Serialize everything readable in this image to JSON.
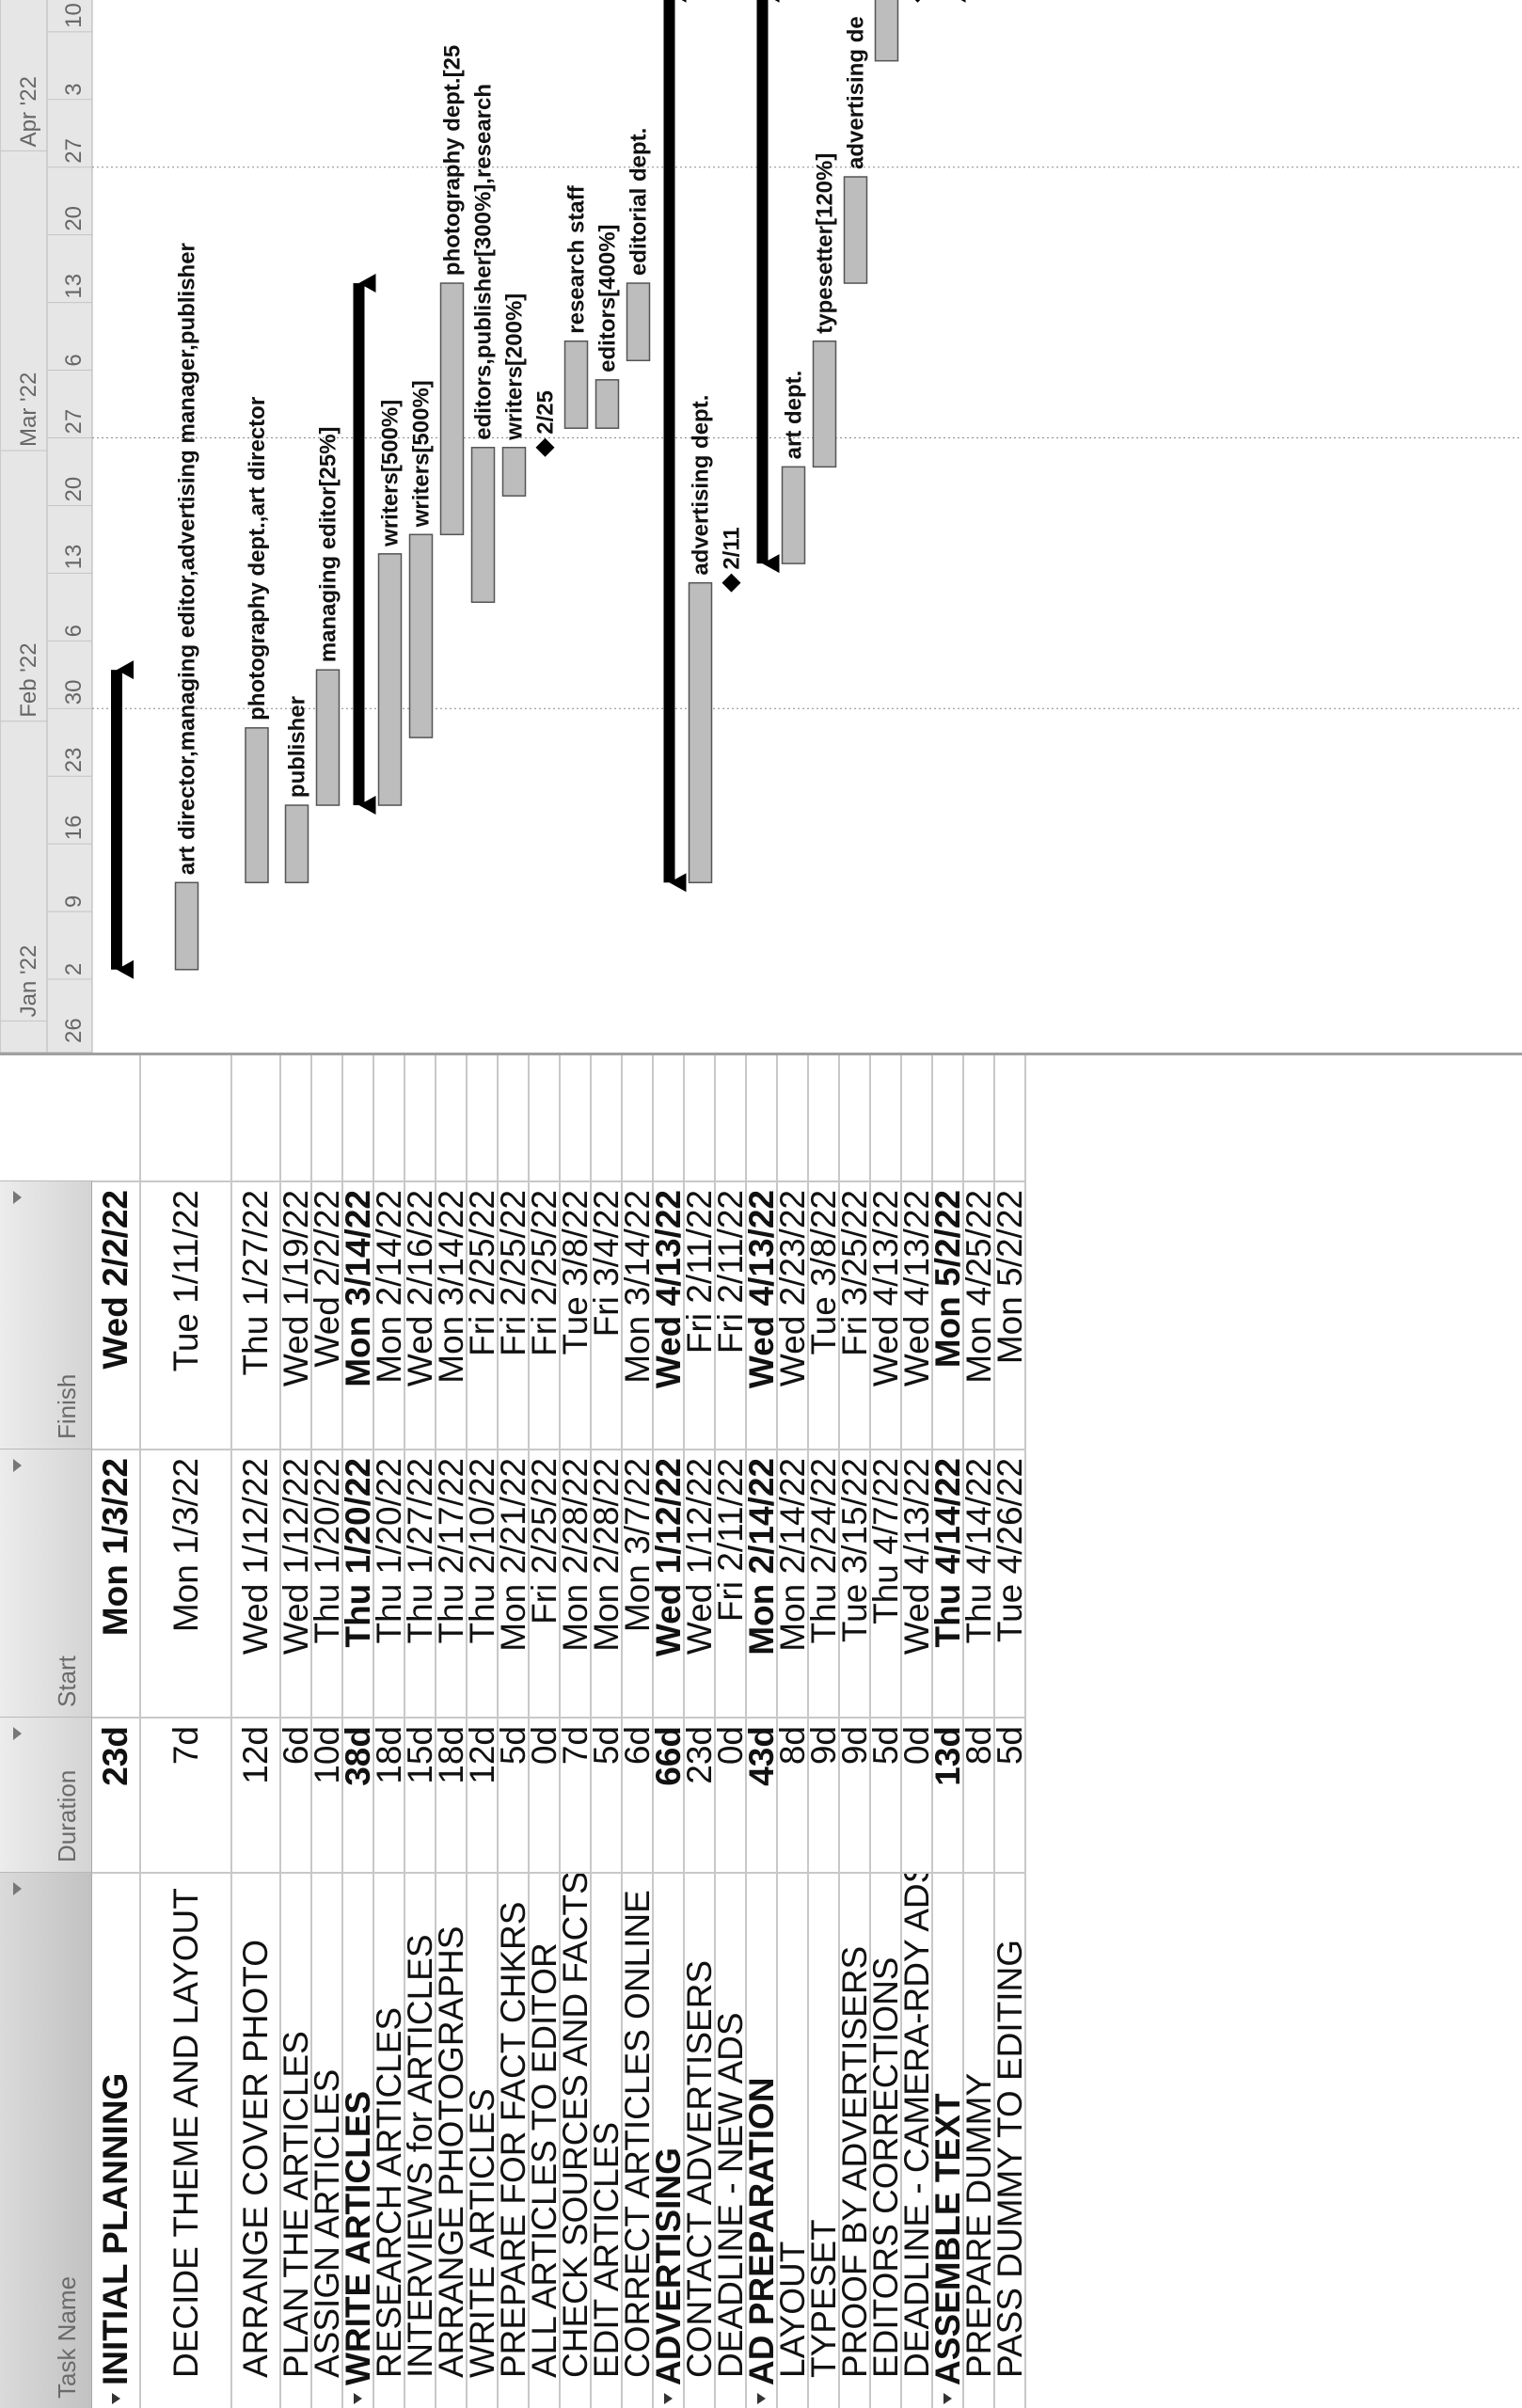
{
  "columns": {
    "task_name": "Task Name",
    "duration": "Duration",
    "start": "Start",
    "finish": "Finish"
  },
  "tasks": [
    {
      "name": "INITIAL PLANNING",
      "duration": "23d",
      "start": "Mon 1/3/22",
      "finish": "Wed 2/2/22",
      "summary": true
    },
    {
      "name": "DECIDE THEME AND LAYOUT",
      "duration": "7d",
      "start": "Mon 1/3/22",
      "finish": "Tue 1/11/22",
      "summary": false
    },
    {
      "name": "ARRANGE COVER PHOTO",
      "duration": "12d",
      "start": "Wed 1/12/22",
      "finish": "Thu 1/27/22",
      "summary": false
    },
    {
      "name": "PLAN THE ARTICLES",
      "duration": "6d",
      "start": "Wed 1/12/22",
      "finish": "Wed 1/19/22",
      "summary": false
    },
    {
      "name": "ASSIGN ARTICLES",
      "duration": "10d",
      "start": "Thu 1/20/22",
      "finish": "Wed 2/2/22",
      "summary": false
    },
    {
      "name": "WRITE ARTICLES",
      "duration": "38d",
      "start": "Thu 1/20/22",
      "finish": "Mon 3/14/22",
      "summary": true
    },
    {
      "name": "RESEARCH ARTICLES",
      "duration": "18d",
      "start": "Thu 1/20/22",
      "finish": "Mon 2/14/22",
      "summary": false
    },
    {
      "name": "INTERVIEWS for ARTICLES",
      "duration": "15d",
      "start": "Thu 1/27/22",
      "finish": "Wed 2/16/22",
      "summary": false
    },
    {
      "name": "ARRANGE PHOTOGRAPHS",
      "duration": "18d",
      "start": "Thu 2/17/22",
      "finish": "Mon 3/14/22",
      "summary": false
    },
    {
      "name": "WRITE ARTICLES",
      "duration": "12d",
      "start": "Thu 2/10/22",
      "finish": "Fri 2/25/22",
      "summary": false
    },
    {
      "name": "PREPARE FOR FACT CHKRS",
      "duration": "5d",
      "start": "Mon 2/21/22",
      "finish": "Fri 2/25/22",
      "summary": false
    },
    {
      "name": "ALL ARTICLES TO EDITOR",
      "duration": "0d",
      "start": "Fri 2/25/22",
      "finish": "Fri 2/25/22",
      "summary": false
    },
    {
      "name": "CHECK SOURCES AND FACTS",
      "duration": "7d",
      "start": "Mon 2/28/22",
      "finish": "Tue 3/8/22",
      "summary": false
    },
    {
      "name": "EDIT ARTICLES",
      "duration": "5d",
      "start": "Mon 2/28/22",
      "finish": "Fri 3/4/22",
      "summary": false
    },
    {
      "name": "CORRECT ARTICLES ONLINE",
      "duration": "6d",
      "start": "Mon 3/7/22",
      "finish": "Mon 3/14/22",
      "summary": false
    },
    {
      "name": "ADVERTISING",
      "duration": "66d",
      "start": "Wed 1/12/22",
      "finish": "Wed 4/13/22",
      "summary": true
    },
    {
      "name": "CONTACT ADVERTISERS",
      "duration": "23d",
      "start": "Wed 1/12/22",
      "finish": "Fri 2/11/22",
      "summary": false
    },
    {
      "name": "DEADLINE - NEW ADS",
      "duration": "0d",
      "start": "Fri 2/11/22",
      "finish": "Fri 2/11/22",
      "summary": false
    },
    {
      "name": "AD PREPARATION",
      "duration": "43d",
      "start": "Mon 2/14/22",
      "finish": "Wed 4/13/22",
      "summary": true
    },
    {
      "name": "LAYOUT",
      "duration": "8d",
      "start": "Mon 2/14/22",
      "finish": "Wed 2/23/22",
      "summary": false
    },
    {
      "name": "TYPESET",
      "duration": "9d",
      "start": "Thu 2/24/22",
      "finish": "Tue 3/8/22",
      "summary": false
    },
    {
      "name": "PROOF BY ADVERTISERS",
      "duration": "9d",
      "start": "Tue 3/15/22",
      "finish": "Fri 3/25/22",
      "summary": false
    },
    {
      "name": "EDITORS CORRECTIONS",
      "duration": "5d",
      "start": "Thu 4/7/22",
      "finish": "Wed 4/13/22",
      "summary": false
    },
    {
      "name": "DEADLINE - CAMERA-RDY ADS",
      "duration": "0d",
      "start": "Wed 4/13/22",
      "finish": "Wed 4/13/22",
      "summary": false
    },
    {
      "name": "ASSEMBLE TEXT",
      "duration": "13d",
      "start": "Thu 4/14/22",
      "finish": "Mon 5/2/22",
      "summary": true
    },
    {
      "name": "PREPARE DUMMY",
      "duration": "8d",
      "start": "Thu 4/14/22",
      "finish": "Mon 4/25/22",
      "summary": false
    },
    {
      "name": "PASS DUMMY TO EDITING",
      "duration": "5d",
      "start": "Tue 4/26/22",
      "finish": "Mon 5/2/22",
      "summary": false
    }
  ],
  "chart_data": {
    "type": "gantt",
    "timescale_major": [
      "Jan '22",
      "Feb '22",
      "Mar '22",
      "Apr '22"
    ],
    "timescale_minor": [
      "26",
      "2",
      "9",
      "16",
      "23",
      "30",
      "6",
      "13",
      "20",
      "27",
      "6",
      "13",
      "20",
      "27",
      "3",
      "10"
    ],
    "x_range": [
      "2021-12-26",
      "2022-04-13"
    ],
    "bars": [
      {
        "row": 0,
        "kind": "summary",
        "start": "2022-01-03",
        "finish": "2022-02-02",
        "label": ""
      },
      {
        "row": 1,
        "kind": "task",
        "start": "2022-01-03",
        "finish": "2022-01-11",
        "label": "art director,managing editor,advertising manager,publisher"
      },
      {
        "row": 2,
        "kind": "task",
        "start": "2022-01-12",
        "finish": "2022-01-27",
        "label": "photography dept.,art director"
      },
      {
        "row": 3,
        "kind": "task",
        "start": "2022-01-12",
        "finish": "2022-01-19",
        "label": "publisher"
      },
      {
        "row": 4,
        "kind": "task",
        "start": "2022-01-20",
        "finish": "2022-02-02",
        "label": "managing editor[25%]"
      },
      {
        "row": 5,
        "kind": "summary",
        "start": "2022-01-20",
        "finish": "2022-03-14",
        "label": ""
      },
      {
        "row": 6,
        "kind": "task",
        "start": "2022-01-20",
        "finish": "2022-02-14",
        "label": "writers[500%]"
      },
      {
        "row": 7,
        "kind": "task",
        "start": "2022-01-27",
        "finish": "2022-02-16",
        "label": "writers[500%]"
      },
      {
        "row": 8,
        "kind": "task",
        "start": "2022-02-17",
        "finish": "2022-03-14",
        "label": "photography dept.[25"
      },
      {
        "row": 9,
        "kind": "task",
        "start": "2022-02-10",
        "finish": "2022-02-25",
        "label": "editors,publisher[300%],research"
      },
      {
        "row": 10,
        "kind": "task",
        "start": "2022-02-21",
        "finish": "2022-02-25",
        "label": "writers[200%]"
      },
      {
        "row": 11,
        "kind": "milestone",
        "start": "2022-02-25",
        "finish": "2022-02-25",
        "label": "2/25"
      },
      {
        "row": 12,
        "kind": "task",
        "start": "2022-02-28",
        "finish": "2022-03-08",
        "label": "research staff"
      },
      {
        "row": 13,
        "kind": "task",
        "start": "2022-02-28",
        "finish": "2022-03-04",
        "label": "editors[400%]"
      },
      {
        "row": 14,
        "kind": "task",
        "start": "2022-03-07",
        "finish": "2022-03-14",
        "label": "editorial dept."
      },
      {
        "row": 15,
        "kind": "summary",
        "start": "2022-01-12",
        "finish": "2022-04-13",
        "label": ""
      },
      {
        "row": 16,
        "kind": "task",
        "start": "2022-01-12",
        "finish": "2022-02-11",
        "label": "advertising dept."
      },
      {
        "row": 17,
        "kind": "milestone",
        "start": "2022-02-11",
        "finish": "2022-02-11",
        "label": "2/11"
      },
      {
        "row": 18,
        "kind": "summary",
        "start": "2022-02-14",
        "finish": "2022-04-13",
        "label": ""
      },
      {
        "row": 19,
        "kind": "task",
        "start": "2022-02-14",
        "finish": "2022-02-23",
        "label": "art dept."
      },
      {
        "row": 20,
        "kind": "task",
        "start": "2022-02-24",
        "finish": "2022-03-08",
        "label": "typesetter[120%]"
      },
      {
        "row": 21,
        "kind": "task",
        "start": "2022-03-15",
        "finish": "2022-03-25",
        "label": "advertising de"
      },
      {
        "row": 22,
        "kind": "task",
        "start": "2022-04-07",
        "finish": "2022-04-13",
        "label": ""
      },
      {
        "row": 23,
        "kind": "milestone",
        "start": "2022-04-13",
        "finish": "2022-04-13",
        "label": ""
      },
      {
        "row": 24,
        "kind": "summary",
        "start": "2022-04-14",
        "finish": "2022-05-02",
        "label": ""
      },
      {
        "row": 25,
        "kind": "task",
        "start": "2022-04-14",
        "finish": "2022-04-25",
        "label": ""
      },
      {
        "row": 26,
        "kind": "task",
        "start": "2022-04-26",
        "finish": "2022-05-02",
        "label": ""
      }
    ]
  }
}
